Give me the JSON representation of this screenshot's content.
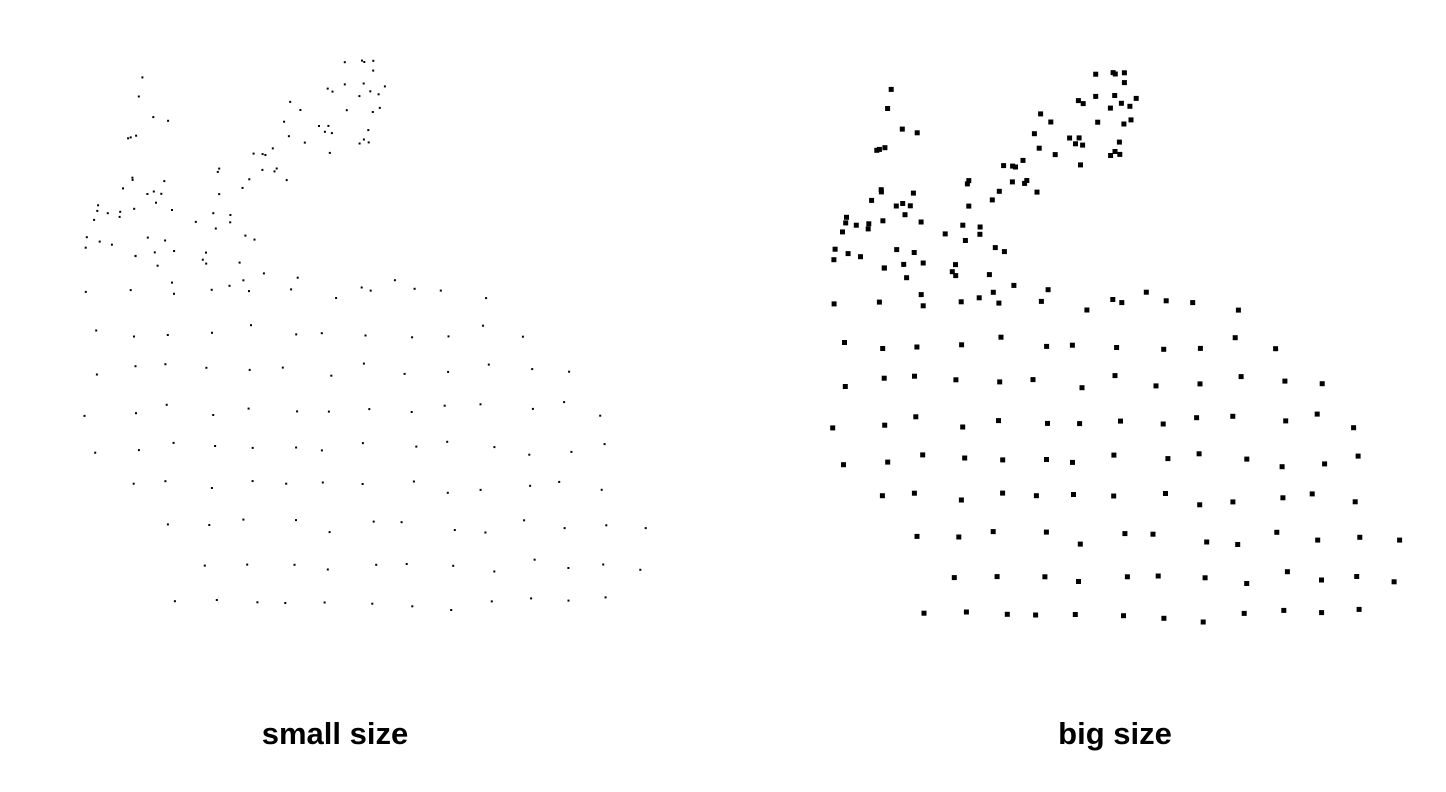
{
  "panels": [
    {
      "caption": "small size",
      "point_color": "#000000"
    },
    {
      "caption": "big size",
      "point_color": "#000000"
    }
  ]
}
